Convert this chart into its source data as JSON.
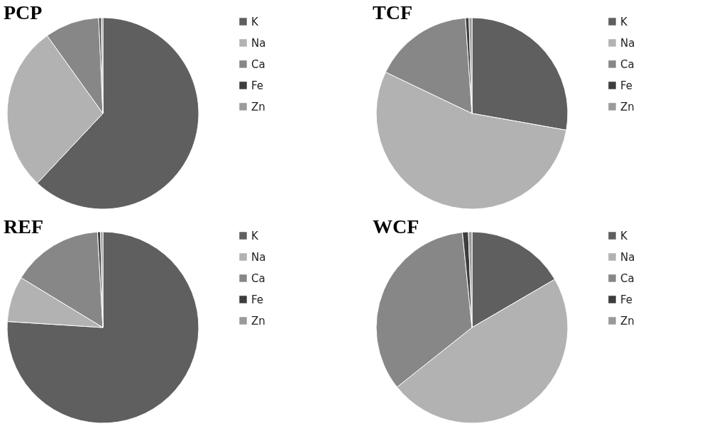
{
  "chart_data": [
    {
      "type": "pie",
      "title": "PCP",
      "categories": [
        "K",
        "Na",
        "Ca",
        "Fe",
        "Zn"
      ],
      "values": [
        62,
        28.1,
        9.2,
        0.4,
        0.3
      ],
      "colors": [
        "#5f5f5f",
        "#b2b2b2",
        "#878787",
        "#3d3d3d",
        "#9a9a9a"
      ],
      "legend": "right"
    },
    {
      "type": "pie",
      "title": "TCF",
      "categories": [
        "K",
        "Na",
        "Ca",
        "Fe",
        "Zn"
      ],
      "values": [
        27.8,
        54.3,
        16.8,
        0.6,
        0.5
      ],
      "colors": [
        "#5f5f5f",
        "#b2b2b2",
        "#878787",
        "#3d3d3d",
        "#9a9a9a"
      ],
      "legend": "right"
    },
    {
      "type": "pie",
      "title": "REF",
      "categories": [
        "K",
        "Na",
        "Ca",
        "Fe",
        "Zn"
      ],
      "values": [
        76,
        7.7,
        15.4,
        0.5,
        0.4
      ],
      "colors": [
        "#5f5f5f",
        "#b2b2b2",
        "#878787",
        "#3d3d3d",
        "#9a9a9a"
      ],
      "legend": "right"
    },
    {
      "type": "pie",
      "title": "WCF",
      "categories": [
        "K",
        "Na",
        "Ca",
        "Fe",
        "Zn"
      ],
      "values": [
        16.6,
        47.7,
        34.1,
        1.0,
        0.6
      ],
      "colors": [
        "#5f5f5f",
        "#b2b2b2",
        "#878787",
        "#3d3d3d",
        "#9a9a9a"
      ],
      "legend": "right"
    }
  ]
}
